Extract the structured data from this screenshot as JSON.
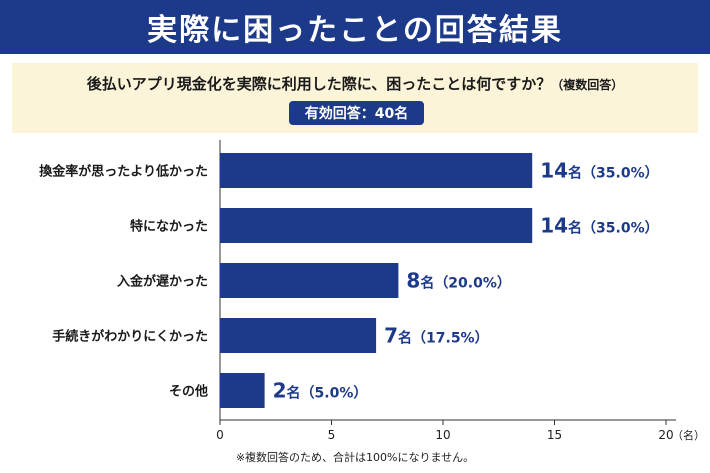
{
  "title": "実際に困ったことの回答結果",
  "question": {
    "text": "後払いアプリ現金化を実際に利用した際に、困ったことは何ですか？",
    "note": "（複数回答）",
    "valid_responses": "有効回答：40名"
  },
  "chart_data": {
    "type": "bar",
    "orientation": "horizontal",
    "categories": [
      "換金率が思ったより低かった",
      "特になかった",
      "入金が遅かった",
      "手続きがわかりにくかった",
      "その他"
    ],
    "values": [
      14,
      14,
      8,
      7,
      2
    ],
    "value_labels": [
      "14",
      "14",
      "8",
      "7",
      "2"
    ],
    "unit_labels": [
      "名",
      "名",
      "名",
      "名",
      "名"
    ],
    "percent_labels": [
      "（35.0%）",
      "（35.0%）",
      "（20.0%）",
      "（17.5%）",
      "（5.0%）"
    ],
    "x_ticks": [
      0,
      5,
      10,
      15,
      20
    ],
    "x_tick_labels": [
      "0",
      "5",
      "10",
      "15",
      "20"
    ],
    "x_unit": "（名）",
    "xlim": [
      0,
      20
    ],
    "grid": false,
    "bar_color": "#1d3a8a",
    "label_color": "#1d3a8a"
  },
  "footnote": "※複数回答のため、合計は100%になりません。"
}
